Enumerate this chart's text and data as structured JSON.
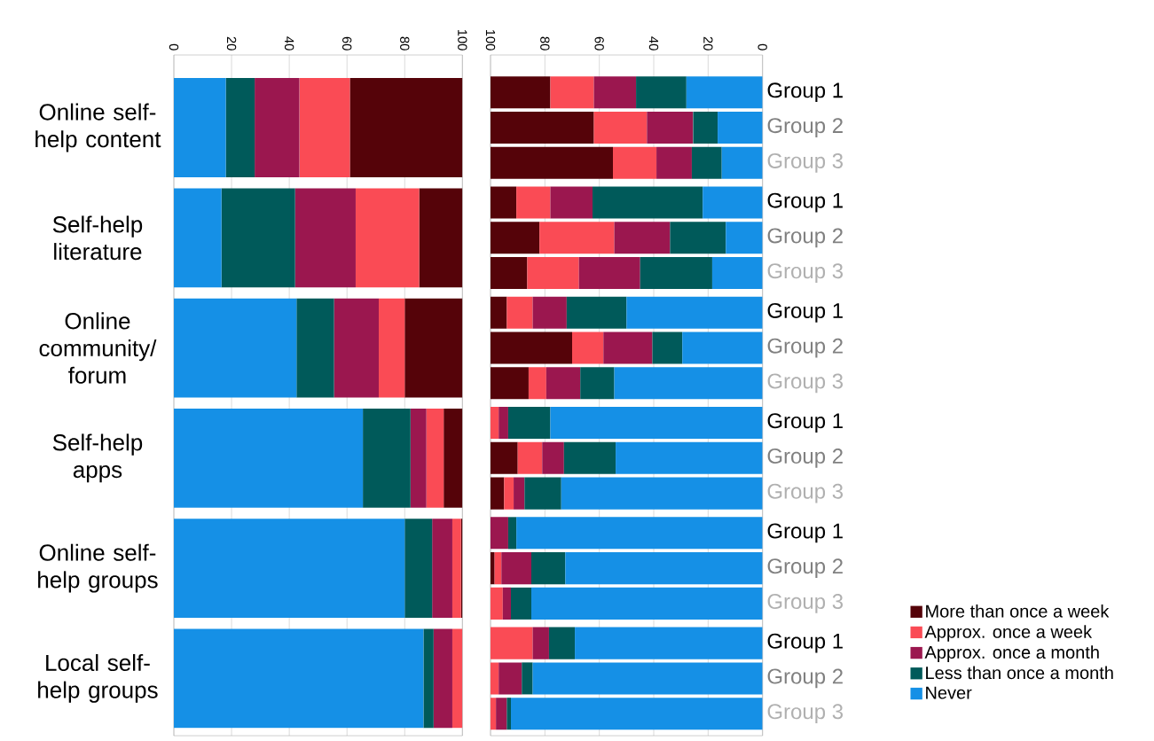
{
  "chart_data": [
    {
      "type": "bar",
      "orientation": "horizontal",
      "stacked": true,
      "categories": [
        "Online self-help content",
        "Self-help literature",
        "Online community/ forum",
        "Self-help apps",
        "Online self-help groups",
        "Local self-help groups"
      ],
      "xlim": [
        0,
        100
      ],
      "xticks": [
        0,
        20,
        40,
        60,
        80,
        100
      ],
      "grid": "x",
      "series": [
        {
          "color": "#1590e6",
          "values": [
            18,
            16.5,
            42.5,
            65.5,
            80,
            86.5
          ]
        },
        {
          "color": "#005a5a",
          "values": [
            10,
            25.5,
            13,
            16.5,
            9.5,
            3.5
          ]
        },
        {
          "color": "#9b174f",
          "values": [
            15.5,
            21,
            15.5,
            5.5,
            7,
            6.5
          ]
        },
        {
          "color": "#fa4b55",
          "values": [
            17.5,
            22,
            9,
            6,
            3,
            3.5
          ]
        },
        {
          "color": "#550309",
          "values": [
            39,
            15,
            20,
            6.5,
            0.5,
            0
          ]
        }
      ]
    },
    {
      "type": "bar",
      "orientation": "horizontal",
      "stacked": true,
      "categories": [
        "Group 1",
        "Group 2",
        "Group 3",
        "Group 1",
        "Group 2",
        "Group 3",
        "Group 1",
        "Group 2",
        "Group 3",
        "Group 1",
        "Group 2",
        "Group 3",
        "Group 1",
        "Group 2",
        "Group 3",
        "Group 1",
        "Group 2",
        "Group 3"
      ],
      "xlim": [
        100,
        0
      ],
      "xticks": [
        100,
        80,
        60,
        40,
        20,
        0
      ],
      "grid": "x",
      "legend": "bottom right",
      "series": [
        {
          "name": "Never",
          "color": "#1590e6",
          "values": [
            28,
            16.5,
            15,
            22,
            13.5,
            18.5,
            50,
            29.5,
            54.5,
            78,
            54,
            74,
            90.5,
            72.5,
            85,
            69,
            84.5,
            92.5
          ]
        },
        {
          "name": "Less than once a month",
          "color": "#005a5a",
          "values": [
            18.5,
            9,
            11,
            40.5,
            20.5,
            26.5,
            22,
            11,
            12.5,
            15.5,
            19,
            13.5,
            3,
            12.5,
            7.5,
            9.5,
            4,
            1.5
          ]
        },
        {
          "name": "Approx. once a month",
          "color": "#9b174f",
          "values": [
            15.5,
            17,
            13,
            15.5,
            20.5,
            22.5,
            12.5,
            18,
            12.5,
            3.5,
            8,
            4,
            6.5,
            11,
            3,
            6,
            8.5,
            4
          ]
        },
        {
          "name": "Approx. once a week",
          "color": "#fa4b55",
          "values": [
            16,
            19.5,
            16,
            12.5,
            27.5,
            19,
            9.5,
            11.5,
            6.5,
            3,
            9,
            3.5,
            0,
            2.5,
            4.5,
            15.5,
            3,
            2
          ]
        },
        {
          "name": "More than once a week",
          "color": "#550309",
          "values": [
            22,
            38,
            45,
            9.5,
            18,
            13.5,
            6,
            30,
            14,
            0,
            10,
            5,
            0,
            1.5,
            0,
            0,
            0,
            0
          ]
        }
      ]
    }
  ]
}
